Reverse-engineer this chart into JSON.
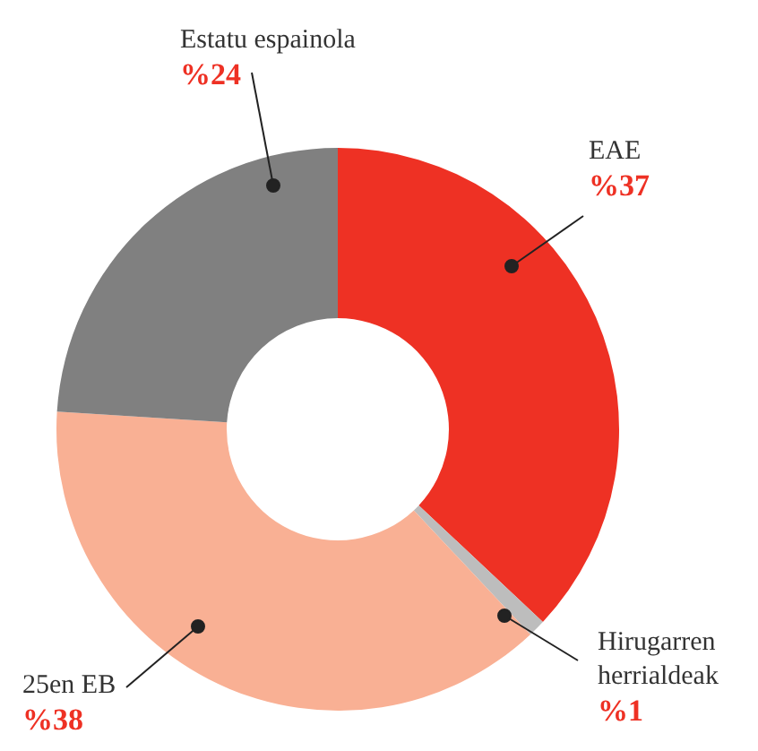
{
  "chart_data": {
    "type": "donut",
    "categories": [
      "EAE",
      "Hirugarren herrialdeak",
      "25en EB",
      "Estatu espainola"
    ],
    "values": [
      37,
      1,
      38,
      24
    ],
    "colors": [
      "#ee3124",
      "#bdbdbd",
      "#f9b094",
      "#808080"
    ],
    "value_labels": [
      "%37",
      "%1",
      "%38",
      "%24"
    ]
  }
}
